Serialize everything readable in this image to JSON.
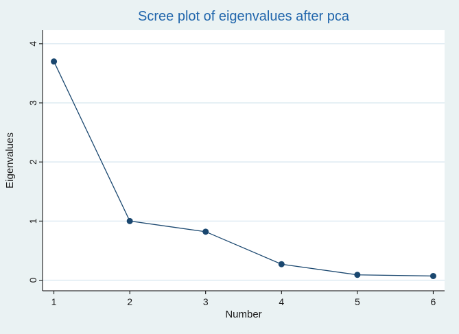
{
  "chart_data": {
    "type": "line",
    "title": "Scree plot of eigenvalues after pca",
    "xlabel": "Number",
    "ylabel": "Eigenvalues",
    "x": [
      1,
      2,
      3,
      4,
      5,
      6
    ],
    "values": [
      3.7,
      1.0,
      0.82,
      0.27,
      0.09,
      0.07
    ],
    "series_name": "Eigenvalues",
    "xticks": [
      1,
      2,
      3,
      4,
      5,
      6
    ],
    "yticks": [
      0,
      1,
      2,
      3,
      4
    ],
    "xlim": [
      1,
      6
    ],
    "ylim": [
      0,
      4
    ],
    "grid": "horizontal",
    "legend": "none",
    "marker": "filled-circle",
    "colors": {
      "background": "#eaf2f3",
      "plot_background": "#ffffff",
      "gridline": "#d6e6ef",
      "line": "#1a476f",
      "marker": "#1a476f",
      "title": "#2166ac",
      "axis": "#000000",
      "tick_label": "#1a1a1a",
      "axis_label": "#1a1a1a"
    }
  }
}
